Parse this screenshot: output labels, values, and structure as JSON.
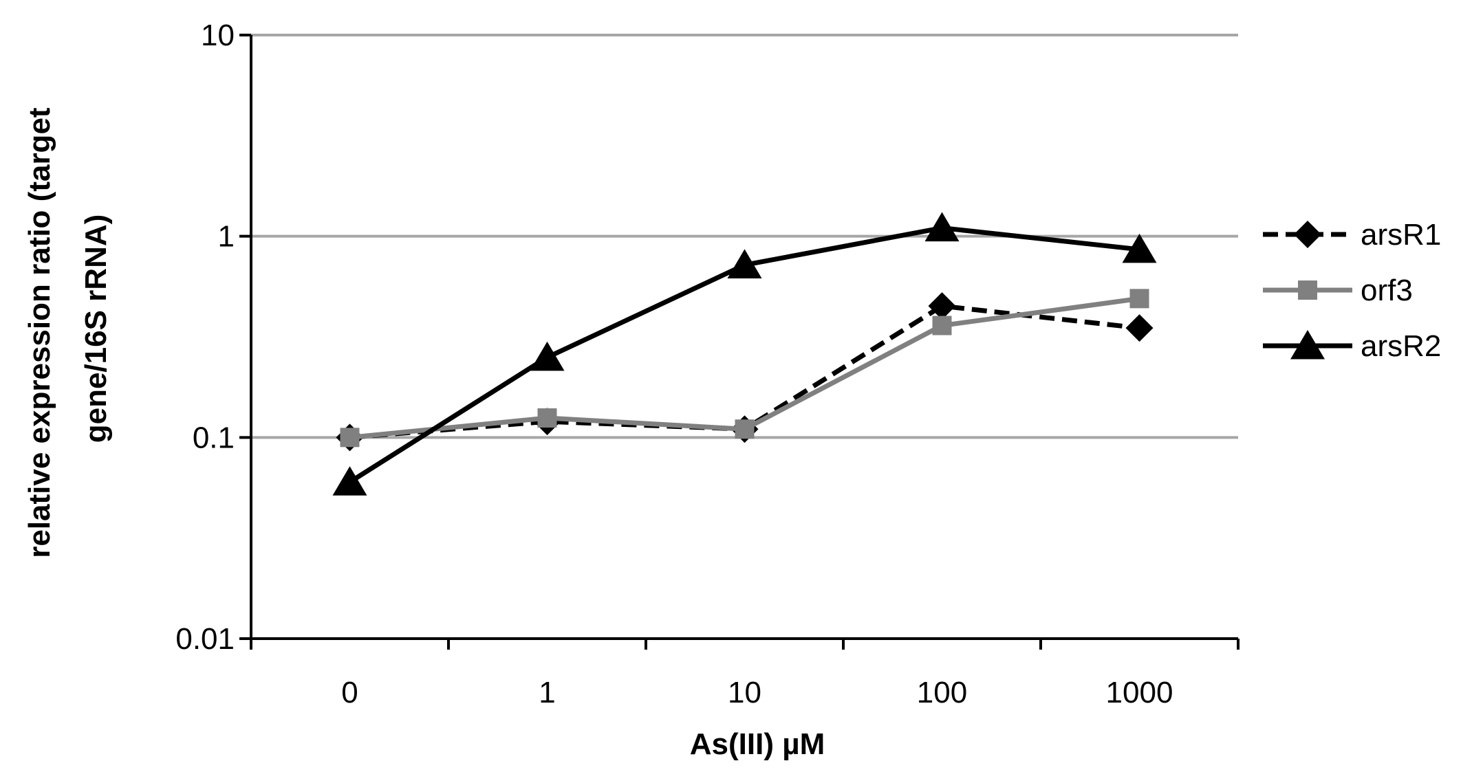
{
  "chart_data": {
    "type": "line",
    "title": "",
    "xlabel": "As(III) µM",
    "ylabel_line1": "relative expression ratio (target",
    "ylabel_line2": "gene/16S rRNA)",
    "categories": [
      "0",
      "1",
      "10",
      "100",
      "1000"
    ],
    "y_scale": "log",
    "ylim": [
      0.01,
      10
    ],
    "yticks": [
      {
        "value": 10,
        "label": "10"
      },
      {
        "value": 1,
        "label": "1"
      },
      {
        "value": 0.1,
        "label": "0.1"
      },
      {
        "value": 0.01,
        "label": "0.01"
      }
    ],
    "grid": true,
    "legend_position": "right",
    "series": [
      {
        "name": "arsR1",
        "values": [
          0.1,
          0.12,
          0.11,
          0.45,
          0.35
        ],
        "color": "#000000",
        "dash": true,
        "marker": "diamond"
      },
      {
        "name": "orf3",
        "values": [
          0.1,
          0.125,
          0.11,
          0.36,
          0.49
        ],
        "color": "#808080",
        "dash": false,
        "marker": "square"
      },
      {
        "name": "arsR2",
        "values": [
          0.06,
          0.25,
          0.72,
          1.1,
          0.86
        ],
        "color": "#000000",
        "dash": false,
        "marker": "triangle"
      }
    ]
  }
}
